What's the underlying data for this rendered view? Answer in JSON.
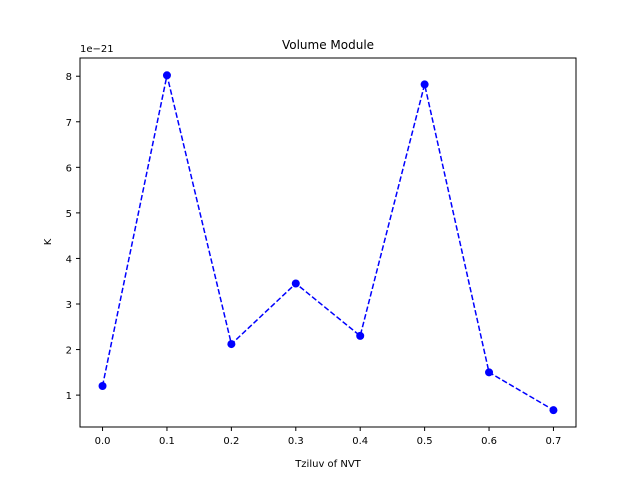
{
  "chart_data": {
    "type": "line",
    "title": "Volume Module",
    "xlabel": "Tziluv of NVT",
    "ylabel": "K",
    "y_offset_text": "1e−21",
    "x_ticks": [
      "0.0",
      "0.1",
      "0.2",
      "0.3",
      "0.4",
      "0.5",
      "0.6",
      "0.7"
    ],
    "y_ticks": [
      "1",
      "2",
      "3",
      "4",
      "5",
      "6",
      "7",
      "8"
    ],
    "xlim": [
      -0.035,
      0.735
    ],
    "ylim": [
      3e-22,
      8.4e-21
    ],
    "grid": false,
    "legend": "none",
    "series": [
      {
        "color": "#0000ff",
        "line_style": "dashed",
        "marker": "circle",
        "x": [
          0.0,
          0.1,
          0.2,
          0.3,
          0.4,
          0.5,
          0.6,
          0.7
        ],
        "y": [
          1.2e-21,
          8.02e-21,
          2.12e-21,
          3.45e-21,
          2.3e-21,
          7.82e-21,
          1.5e-21,
          6.7e-22
        ]
      }
    ]
  }
}
